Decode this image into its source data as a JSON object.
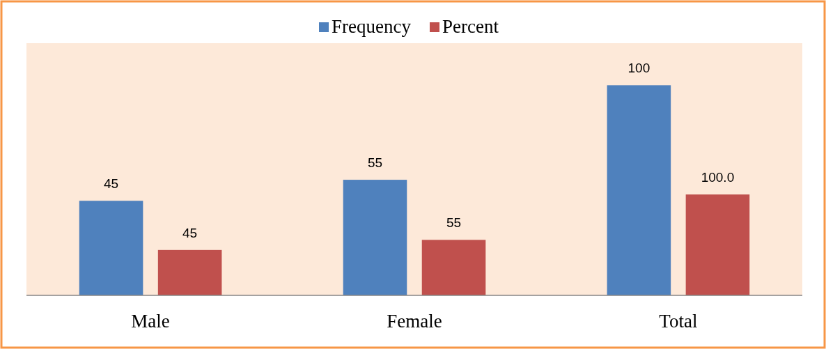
{
  "chart_data": {
    "type": "bar",
    "categories": [
      "Male",
      "Female",
      "Total"
    ],
    "series": [
      {
        "name": "Frequency",
        "color": "#4f81bd",
        "values": [
          45,
          55,
          100
        ],
        "value_labels": [
          "45",
          "55",
          "100"
        ]
      },
      {
        "name": "Percent",
        "color": "#c0504d",
        "values": [
          45,
          55,
          100
        ],
        "value_labels": [
          "45",
          "55",
          "100.0"
        ],
        "axis": "y2"
      }
    ],
    "ylim": [
      0,
      120
    ],
    "y2lim": [
      0,
      250
    ],
    "tick_labels": "x",
    "legend": "top"
  }
}
